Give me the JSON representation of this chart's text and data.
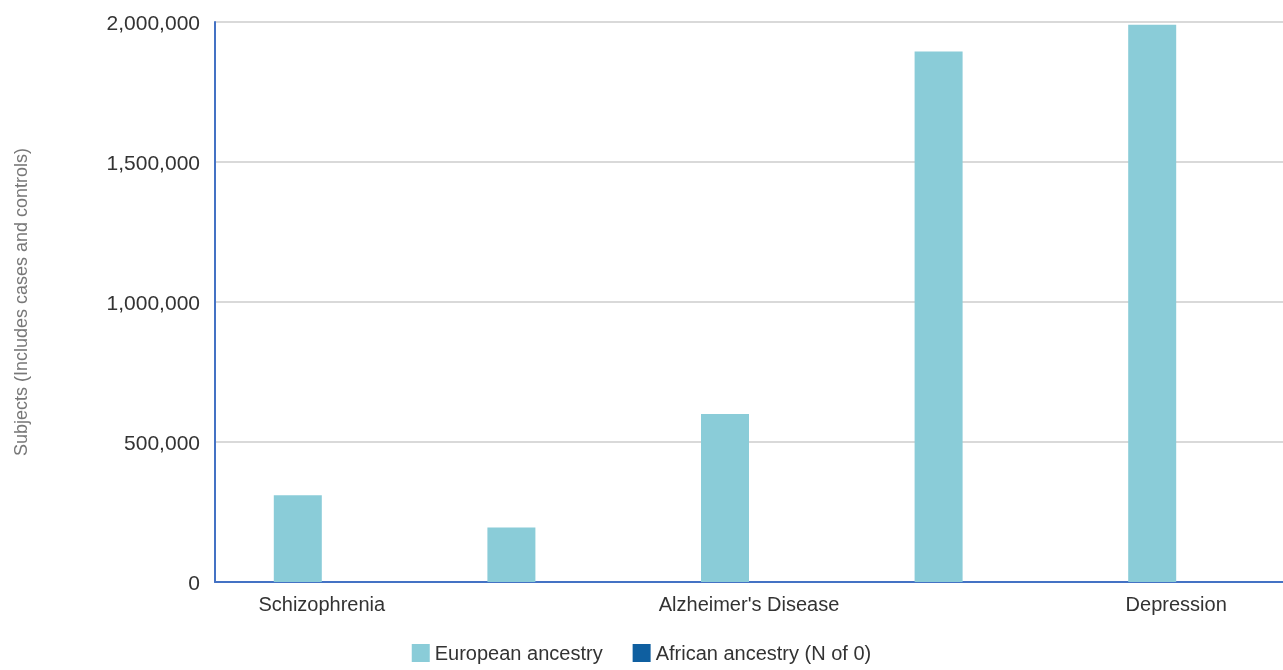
{
  "chart_data": {
    "type": "bar",
    "ylabel": "Subjects (Includes cases and controls)",
    "categories": [
      "Schizophrenia",
      null,
      "Alzheimer's Disease",
      null,
      "Depression"
    ],
    "series": [
      {
        "name": "European ancestry",
        "color": "#8accd8",
        "values": [
          310000,
          195000,
          600000,
          1895000,
          1990000
        ]
      },
      {
        "name": "African ancestry (N of 0)",
        "color": "#0f5fa0",
        "values": [
          0,
          0,
          0,
          0,
          0
        ]
      }
    ],
    "ylim": [
      0,
      2000000
    ],
    "yticks": [
      {
        "value": 0,
        "label": "0"
      },
      {
        "value": 500000,
        "label": "500,000"
      },
      {
        "value": 1000000,
        "label": "1,000,000"
      },
      {
        "value": 1500000,
        "label": "1,500,000"
      },
      {
        "value": 2000000,
        "label": "2,000,000"
      }
    ],
    "grid": "y",
    "legend": "bottom"
  }
}
